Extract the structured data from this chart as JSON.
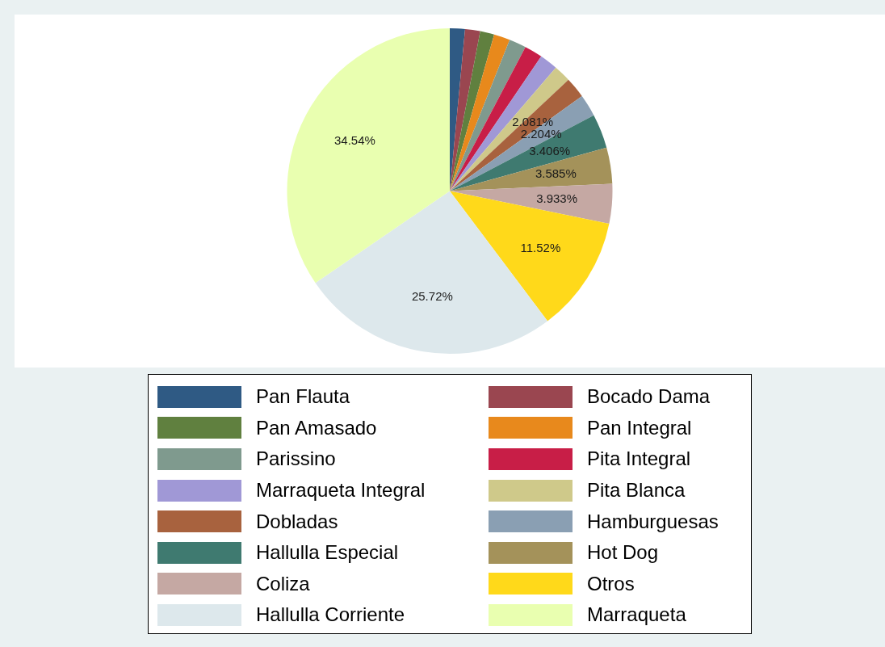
{
  "chart_data": {
    "type": "pie",
    "categories": [
      "Pan Flauta",
      "Bocado Dama",
      "Pan Amasado",
      "Pan Integral",
      "Parissino",
      "Pita Integral",
      "Marraqueta Integral",
      "Pita Blanca",
      "Dobladas",
      "Hamburguesas",
      "Hallulla Especial",
      "Hot Dog",
      "Coliza",
      "Otros",
      "Hallulla Corriente",
      "Marraqueta"
    ],
    "values": [
      1.5,
      1.5,
      1.4,
      1.6,
      1.7,
      1.8,
      1.8,
      1.711,
      2.081,
      2.204,
      3.406,
      3.585,
      3.933,
      11.52,
      25.72,
      34.54
    ],
    "value_labels": [
      null,
      null,
      null,
      null,
      null,
      null,
      null,
      null,
      "2.081%",
      "2.204%",
      "3.406%",
      "3.585%",
      "3.933%",
      "11.52%",
      "25.72%",
      "34.54%"
    ],
    "colors": [
      "#2f5a84",
      "#9a4650",
      "#60803f",
      "#e8891c",
      "#7f9a8e",
      "#c81e47",
      "#a098d6",
      "#cfc98a",
      "#a8623e",
      "#8a9fb3",
      "#3f7a70",
      "#a4925a",
      "#c5a8a3",
      "#ffd91a",
      "#dde8ec",
      "#e9ffb0"
    ],
    "legend": "bottom"
  }
}
